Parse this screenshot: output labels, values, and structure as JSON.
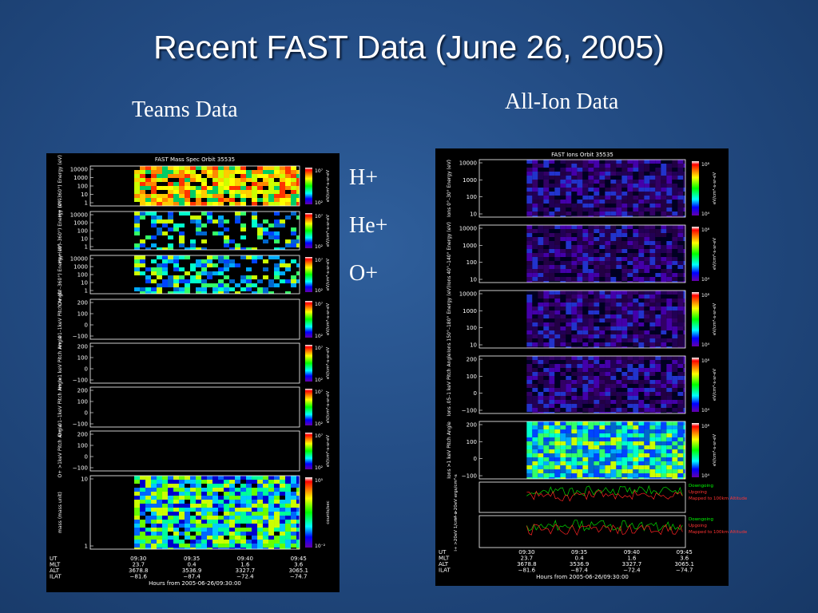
{
  "title": "Recent FAST Data (June 26, 2005)",
  "captions": {
    "teams": "Teams Data",
    "all_ion": "All-Ion Data"
  },
  "species": [
    "H+",
    "He+",
    "O+"
  ],
  "teams_plot": {
    "title": "FAST Mass Spec   Orbit 35535",
    "panels": [
      {
        "label": "H+ (0°–360°) Energy (eV)",
        "ticks": [
          "10000",
          "1000",
          "100",
          "10",
          "1"
        ],
        "cbar_top": "10⁷",
        "cbar_bottom": "10²",
        "cbar_label": "eV/cm²-s-sr-eV"
      },
      {
        "label": "He+ (0°–360°) Energy (eV)",
        "ticks": [
          "10000",
          "1000",
          "100",
          "10",
          "1"
        ],
        "cbar_top": "10⁷",
        "cbar_bottom": "10²",
        "cbar_label": "eV/cm²-s-sr-eV"
      },
      {
        "label": "O+ (0°–360°) Energy (eV)",
        "ticks": [
          "10000",
          "1000",
          "100",
          "10",
          "1"
        ],
        "cbar_top": "10⁷",
        "cbar_bottom": "10²",
        "cbar_label": "eV/cm²-s-sr-eV"
      },
      {
        "label": "H+ .01–1keV Pitch Angle",
        "ticks": [
          "200",
          "100",
          "0",
          "−100"
        ],
        "cbar_top": "10⁷",
        "cbar_bottom": "10²",
        "cbar_label": "eV/cm²-s-sr-eV"
      },
      {
        "label": "H+ >1 keV Pitch Angle",
        "ticks": [
          "200",
          "100",
          "0",
          "−100"
        ],
        "cbar_top": "10⁷",
        "cbar_bottom": "10²",
        "cbar_label": "eV/cm²-s-sr-eV"
      },
      {
        "label": "O+ .01–1keV Pitch Angle",
        "ticks": [
          "200",
          "100",
          "0",
          "−100"
        ],
        "cbar_top": "10⁷",
        "cbar_bottom": "10²",
        "cbar_label": "eV/cm²-s-sr-eV"
      },
      {
        "label": "O+ >1keV Pitch Angle",
        "ticks": [
          "200",
          "100",
          "0",
          "−100"
        ],
        "cbar_top": "10⁷",
        "cbar_bottom": "10²",
        "cbar_label": "eV/cm²-s-sr-eV"
      },
      {
        "label": "mass (mass unit)",
        "ticks": [
          "10",
          "1"
        ],
        "cbar_top": "10⁵",
        "cbar_bottom": "10⁻²",
        "cbar_label": "counts/sec"
      }
    ],
    "footer": {
      "rows": [
        "UT",
        "MLT",
        "ALT",
        "ILAT"
      ],
      "columns": [
        [
          "09:30",
          "23.7",
          "3678.8",
          "−81.6"
        ],
        [
          "09:35",
          "0.4",
          "3536.9",
          "−87.4"
        ],
        [
          "09:40",
          "1.6",
          "3327.7",
          "−72.4"
        ],
        [
          "09:45",
          "3.6",
          "3065.1",
          "−74.7"
        ]
      ]
    },
    "xlabel": "Hours from 2005-06-26/09:30:00"
  },
  "ions_plot": {
    "title": "FAST Ions   Orbit 35535",
    "panels": [
      {
        "label": "Ions 0°–30° Energy (eV)",
        "ticks": [
          "10000",
          "1000",
          "100",
          "10"
        ],
        "cbar_top": "10⁸",
        "cbar_bottom": "10⁴",
        "cbar_label": "eV/cm²-s-sr-eV"
      },
      {
        "label": "Ions 40°–140° Energy (eV)",
        "ticks": [
          "10000",
          "1000",
          "100",
          "10"
        ],
        "cbar_top": "10⁸",
        "cbar_bottom": "10⁴",
        "cbar_label": "eV/cm²-s-sr-eV"
      },
      {
        "label": "Ions 150°–180° Energy (eV)",
        "ticks": [
          "10000",
          "1000",
          "100",
          "10"
        ],
        "cbar_top": "10⁸",
        "cbar_bottom": "10⁴",
        "cbar_label": "eV/cm²-s-sr-eV"
      },
      {
        "label": "Ions .05–1 keV Pitch Angle",
        "ticks": [
          "200",
          "100",
          "0",
          "−100"
        ],
        "cbar_top": "10⁸",
        "cbar_bottom": "10⁴",
        "cbar_label": "eV/cm²-s-sr-eV"
      },
      {
        "label": "Ions >1 keV Pitch Angle",
        "ticks": [
          "200",
          "100",
          "0",
          "−100"
        ],
        "cbar_top": "10⁸",
        "cbar_bottom": "10⁴",
        "cbar_label": "eV/cm²-s-sr-eV"
      }
    ],
    "flux_panels": [
      {
        "label": "i+ >20eV ergs/cm²-s",
        "legend": [
          "Downgoing",
          "Upgoing",
          "Mapped to 100km Altitude"
        ]
      },
      {
        "label": "i+ >20eV 1/cm²-s",
        "legend": [
          "Downgoing",
          "Upgoing",
          "Mapped to 100km Altitude"
        ]
      }
    ],
    "footer": {
      "rows": [
        "UT",
        "MLT",
        "ALT",
        "ILAT"
      ],
      "columns": [
        [
          "09:30",
          "23.7",
          "3678.8",
          "−81.6"
        ],
        [
          "09:35",
          "0.4",
          "3536.9",
          "−87.4"
        ],
        [
          "09:40",
          "1.6",
          "3327.7",
          "−72.4"
        ],
        [
          "09:45",
          "3.6",
          "3065.1",
          "−74.7"
        ]
      ]
    },
    "xlabel": "Hours from 2005-06-26/09:30:00"
  }
}
